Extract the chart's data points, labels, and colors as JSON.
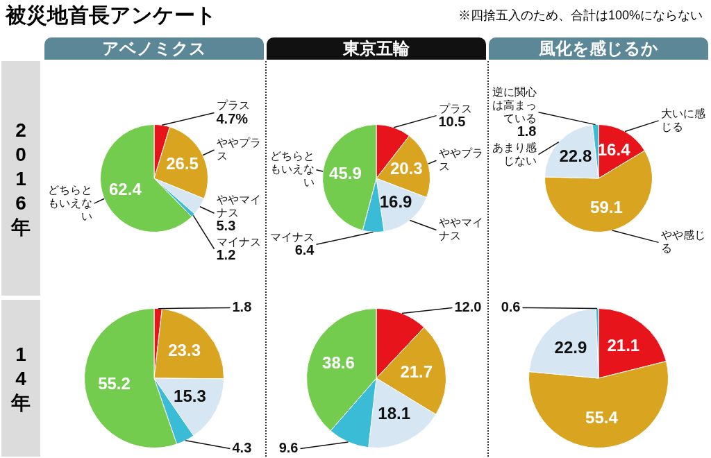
{
  "chart_data": [
    {
      "type": "other",
      "title": "被災地首長アンケート",
      "annotations": [
        "※四捨五入のため、合計は100%にならない"
      ]
    },
    {
      "type": "pie",
      "title": "アベノミクス",
      "ylabel": "2016年",
      "categories": [
        "プラス",
        "ややプラス",
        "ややマイナス",
        "マイナス",
        "どちらともいえない"
      ],
      "values": [
        4.7,
        26.5,
        5.3,
        1.2,
        62.4
      ],
      "colors": [
        "#e8141c",
        "#d9a521",
        "#d6e6f3",
        "#3bbcd6",
        "#74cc4f"
      ],
      "value_labels": [
        "4.7%",
        "26.5",
        "5.3",
        "1.2",
        "62.4"
      ]
    },
    {
      "type": "pie",
      "title": "東京五輪",
      "categories": [
        "プラス",
        "ややプラス",
        "ややマイナス",
        "マイナス",
        "どちらともいえない"
      ],
      "values": [
        10.5,
        20.3,
        16.9,
        6.4,
        45.9
      ],
      "colors": [
        "#e8141c",
        "#d9a521",
        "#d6e6f3",
        "#3bbcd6",
        "#74cc4f"
      ],
      "value_labels": [
        "10.5",
        "20.3",
        "16.9",
        "6.4",
        "45.9"
      ]
    },
    {
      "type": "pie",
      "title": "風化を感じるか",
      "categories": [
        "大いに感じる",
        "やや感じる",
        "あまり感じない",
        "逆に関心は高まっている"
      ],
      "values": [
        16.4,
        59.1,
        22.8,
        1.8
      ],
      "colors": [
        "#e8141c",
        "#d9a521",
        "#d6e6f3",
        "#3bbcd6"
      ],
      "value_labels": [
        "16.4",
        "59.1",
        "22.8",
        "1.8"
      ]
    },
    {
      "type": "pie",
      "ylabel": "14年",
      "categories": [
        null,
        null,
        null,
        null,
        null
      ],
      "values": [
        1.8,
        23.3,
        15.3,
        4.3,
        55.2
      ],
      "colors": [
        "#e8141c",
        "#d9a521",
        "#d6e6f3",
        "#3bbcd6",
        "#74cc4f"
      ],
      "value_labels": [
        "1.8",
        "23.3",
        "15.3",
        "4.3",
        "55.2"
      ]
    },
    {
      "type": "pie",
      "categories": [
        null,
        null,
        null,
        null,
        null
      ],
      "values": [
        12.0,
        21.7,
        18.1,
        9.6,
        38.6
      ],
      "colors": [
        "#e8141c",
        "#d9a521",
        "#d6e6f3",
        "#3bbcd6",
        "#74cc4f"
      ],
      "value_labels": [
        "12.0",
        "21.7",
        "18.1",
        "9.6",
        "38.6"
      ]
    },
    {
      "type": "pie",
      "categories": [
        null,
        null,
        null,
        null
      ],
      "values": [
        21.1,
        55.4,
        22.9,
        0.6
      ],
      "colors": [
        "#e8141c",
        "#d9a521",
        "#d6e6f3",
        "#3bbcd6"
      ],
      "value_labels": [
        "21.1",
        "55.4",
        "22.9",
        "0.6"
      ]
    }
  ]
}
